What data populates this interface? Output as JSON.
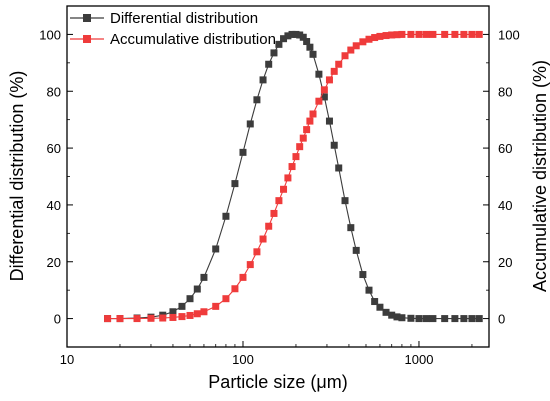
{
  "chart_data": {
    "type": "line",
    "title": "",
    "xlabel": "Particle size (μm)",
    "ylabel_left": "Differential distribution (%)",
    "ylabel_right": "Accumulative distribution (%)",
    "x_scale": "log",
    "xlim": [
      10,
      2500
    ],
    "ylim_left": [
      -10,
      110
    ],
    "ylim_right": [
      -10,
      110
    ],
    "x_ticks": [
      {
        "value": 10,
        "label": "10"
      },
      {
        "value": 100,
        "label": "100"
      },
      {
        "value": 1000,
        "label": "1000"
      }
    ],
    "y_ticks_left": [
      {
        "value": 0,
        "label": "0"
      },
      {
        "value": 20,
        "label": "20"
      },
      {
        "value": 40,
        "label": "40"
      },
      {
        "value": 60,
        "label": "60"
      },
      {
        "value": 80,
        "label": "80"
      },
      {
        "value": 100,
        "label": "100"
      }
    ],
    "y_ticks_right": [
      {
        "value": 0,
        "label": "0"
      },
      {
        "value": 20,
        "label": "20"
      },
      {
        "value": 40,
        "label": "40"
      },
      {
        "value": 60,
        "label": "60"
      },
      {
        "value": 80,
        "label": "80"
      },
      {
        "value": 100,
        "label": "100"
      }
    ],
    "legend_position": "top-left",
    "grid": false,
    "series": [
      {
        "name": "Differential distribution",
        "axis": "left",
        "color": "#3c3c3c",
        "marker": "square",
        "x": [
          17,
          20,
          25,
          30,
          35,
          40,
          45,
          50,
          55,
          60,
          70,
          80,
          90,
          100,
          110,
          120,
          130,
          140,
          150,
          160,
          170,
          180,
          190,
          200,
          210,
          220,
          230,
          240,
          250,
          270,
          290,
          310,
          330,
          350,
          380,
          410,
          440,
          480,
          520,
          560,
          600,
          650,
          700,
          750,
          800,
          900,
          1000,
          1100,
          1200,
          1400,
          1600,
          1800,
          2000,
          2200
        ],
        "y": [
          0,
          0,
          0.2,
          0.5,
          1.2,
          2.4,
          4.3,
          7,
          10.4,
          14.5,
          24.5,
          36,
          47.5,
          58.5,
          68.5,
          77,
          84,
          89.5,
          93.5,
          96.5,
          98.5,
          99.5,
          100,
          100,
          99.8,
          99,
          97.5,
          95.5,
          93,
          86,
          78,
          69.5,
          61,
          53,
          41.5,
          32,
          24,
          15.5,
          10,
          6,
          4,
          2.2,
          1.2,
          0.6,
          0.3,
          0.1,
          0,
          0,
          0,
          0,
          0,
          0,
          0,
          0
        ]
      },
      {
        "name": "Accumulative distribution",
        "axis": "right",
        "color": "#ef3b3b",
        "marker": "square",
        "x": [
          17,
          20,
          25,
          30,
          35,
          40,
          45,
          50,
          55,
          60,
          70,
          80,
          90,
          100,
          110,
          120,
          130,
          140,
          150,
          160,
          170,
          180,
          190,
          200,
          210,
          220,
          230,
          240,
          250,
          270,
          290,
          310,
          330,
          350,
          380,
          410,
          440,
          480,
          520,
          560,
          600,
          650,
          700,
          750,
          800,
          900,
          1000,
          1100,
          1200,
          1400,
          1600,
          1800,
          2000,
          2200
        ],
        "y": [
          0,
          0,
          0,
          0.1,
          0.2,
          0.4,
          0.7,
          1.1,
          1.7,
          2.4,
          4.3,
          7,
          10.5,
          14.5,
          19,
          23.5,
          28,
          32.5,
          37,
          41.5,
          45.5,
          49.5,
          53.5,
          57,
          60.5,
          63.5,
          66.5,
          69.5,
          72,
          76.5,
          80.5,
          84,
          87,
          89.5,
          92.5,
          94.5,
          96,
          97.4,
          98.3,
          98.9,
          99.3,
          99.6,
          99.8,
          99.9,
          100,
          100,
          100,
          100,
          100,
          100,
          100,
          100,
          100,
          100
        ]
      }
    ]
  }
}
